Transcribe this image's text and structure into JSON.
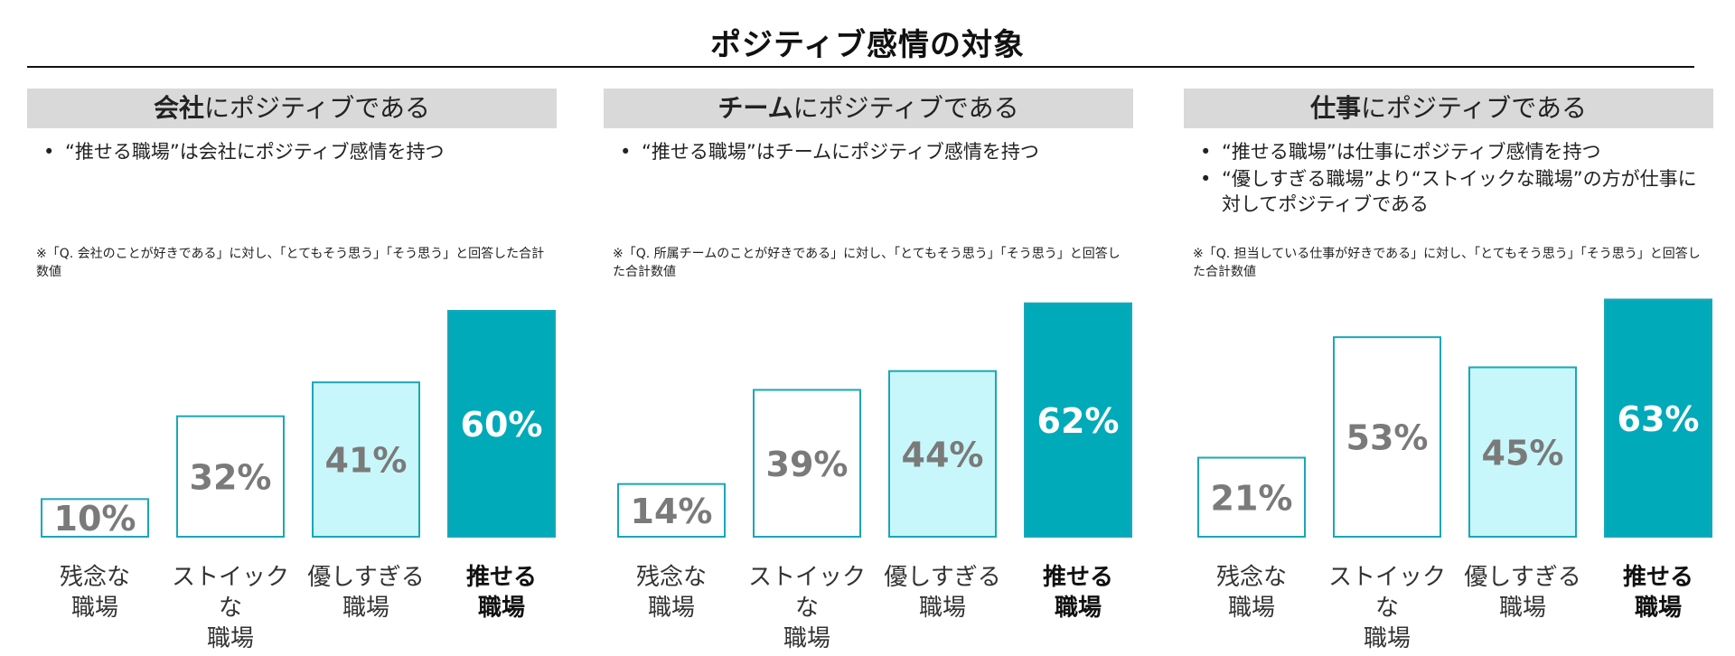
{
  "title": "ポジティブ感情の対象",
  "colors": {
    "outline": "#19a7b8",
    "light_fill": "#c8f7fb",
    "dark_fill": "#00aab8",
    "value_gray": "#7a7a7a",
    "value_white": "#ffffff"
  },
  "panels": [
    {
      "header_strong": "会社",
      "header_rest": "にポジティブである",
      "bullets": [
        "“推せる職場”は会社にポジティブ感情を持つ"
      ],
      "note": "※「Q. 会社のことが好きである」に対し、「とてもそう思う」「そう思う」と回答した合計数値"
    },
    {
      "header_strong": "チーム",
      "header_rest": "にポジティブである",
      "bullets": [
        "“推せる職場”はチームにポジティブ感情を持つ"
      ],
      "note": "※「Q. 所属チームのことが好きである」に対し、「とてもそう思う」「そう思う」と回答した合計数値"
    },
    {
      "header_strong": "仕事",
      "header_rest": "にポジティブである",
      "bullets": [
        "“推せる職場”は仕事にポジティブ感情を持つ",
        "“優しすぎる職場”より“ストイックな職場”の方が仕事に対してポジティブである"
      ],
      "note": "※「Q. 担当している仕事が好きである」に対し、「とてもそう思う」「そう思う」と回答した合計数値"
    }
  ],
  "chart_data": [
    {
      "type": "bar",
      "categories": [
        "残念な職場",
        "ストイックな職場",
        "優しすぎる職場",
        "推せる職場"
      ],
      "category_lines": [
        [
          "残念な",
          "職場"
        ],
        [
          "ストイックな",
          "職場"
        ],
        [
          "優しすぎる",
          "職場"
        ],
        [
          "推せる",
          "職場"
        ]
      ],
      "values": [
        10,
        32,
        41,
        60
      ],
      "value_labels": [
        "10%",
        "32%",
        "41%",
        "60%"
      ],
      "styles": [
        "outline",
        "outline",
        "light",
        "dark"
      ],
      "highlight_index": 3,
      "ylim": [
        0,
        60
      ]
    },
    {
      "type": "bar",
      "categories": [
        "残念な職場",
        "ストイックな職場",
        "優しすぎる職場",
        "推せる職場"
      ],
      "category_lines": [
        [
          "残念な",
          "職場"
        ],
        [
          "ストイックな",
          "職場"
        ],
        [
          "優しすぎる",
          "職場"
        ],
        [
          "推せる",
          "職場"
        ]
      ],
      "values": [
        14,
        39,
        44,
        62
      ],
      "value_labels": [
        "14%",
        "39%",
        "44%",
        "62%"
      ],
      "styles": [
        "outline",
        "outline",
        "light",
        "dark"
      ],
      "highlight_index": 3,
      "ylim": [
        0,
        62
      ]
    },
    {
      "type": "bar",
      "categories": [
        "残念な職場",
        "ストイックな職場",
        "優しすぎる職場",
        "推せる職場"
      ],
      "category_lines": [
        [
          "残念な",
          "職場"
        ],
        [
          "ストイックな",
          "職場"
        ],
        [
          "優しすぎる",
          "職場"
        ],
        [
          "推せる",
          "職場"
        ]
      ],
      "values": [
        21,
        53,
        45,
        63
      ],
      "value_labels": [
        "21%",
        "53%",
        "45%",
        "63%"
      ],
      "styles": [
        "outline",
        "outline",
        "light",
        "dark"
      ],
      "highlight_index": 3,
      "ylim": [
        0,
        63
      ]
    }
  ]
}
